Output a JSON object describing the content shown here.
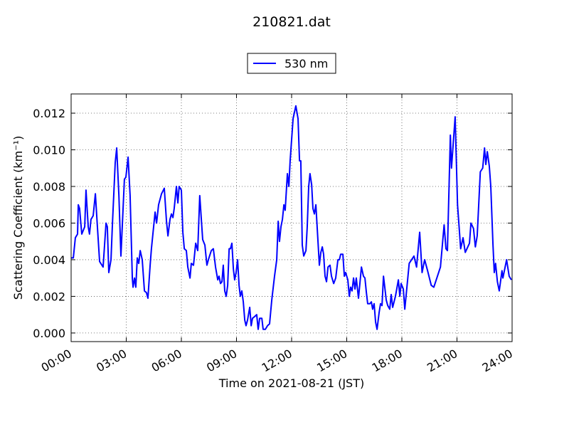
{
  "chart_data": {
    "type": "line",
    "title": "210821.dat",
    "xlabel": "Time on 2021-08-21 (JST)",
    "ylabel": "Scattering Coefficient (km⁻¹)",
    "legend": "upper center",
    "grid": true,
    "xlim": [
      0,
      24
    ],
    "xticks": [
      {
        "value": 0,
        "label": "00:00"
      },
      {
        "value": 3,
        "label": "03:00"
      },
      {
        "value": 6,
        "label": "06:00"
      },
      {
        "value": 9,
        "label": "09:00"
      },
      {
        "value": 12,
        "label": "12:00"
      },
      {
        "value": 15,
        "label": "15:00"
      },
      {
        "value": 18,
        "label": "18:00"
      },
      {
        "value": 21,
        "label": "21:00"
      },
      {
        "value": 24,
        "label": "24:00"
      }
    ],
    "ylim": [
      -0.00047,
      0.01305
    ],
    "yticks": [
      {
        "value": 0,
        "label": "0.000"
      },
      {
        "value": 0.002,
        "label": "0.002"
      },
      {
        "value": 0.004,
        "label": "0.004"
      },
      {
        "value": 0.006,
        "label": "0.006"
      },
      {
        "value": 0.008,
        "label": "0.008"
      },
      {
        "value": 0.01,
        "label": "0.010"
      },
      {
        "value": 0.012,
        "label": "0.012"
      }
    ],
    "x": [
      0,
      0.12,
      0.23,
      0.35,
      0.39,
      0.46,
      0.58,
      0.74,
      0.81,
      0.93,
      1.0,
      1.08,
      1.2,
      1.32,
      1.43,
      1.55,
      1.74,
      1.9,
      1.97,
      2.05,
      2.17,
      2.25,
      2.4,
      2.48,
      2.6,
      2.71,
      2.9,
      2.98,
      3.1,
      3.21,
      3.33,
      3.37,
      3.45,
      3.52,
      3.6,
      3.68,
      3.76,
      3.87,
      3.99,
      4.1,
      4.18,
      4.3,
      4.37,
      4.49,
      4.57,
      4.65,
      4.76,
      4.92,
      5.07,
      5.19,
      5.27,
      5.38,
      5.46,
      5.54,
      5.61,
      5.73,
      5.81,
      5.88,
      6.0,
      6.08,
      6.16,
      6.27,
      6.35,
      6.47,
      6.54,
      6.66,
      6.78,
      6.89,
      7.0,
      7.08,
      7.16,
      7.28,
      7.39,
      7.47,
      7.63,
      7.74,
      7.86,
      7.98,
      8.05,
      8.13,
      8.21,
      8.28,
      8.36,
      8.44,
      8.52,
      8.6,
      8.67,
      8.75,
      8.83,
      8.9,
      8.98,
      9.06,
      9.14,
      9.21,
      9.29,
      9.37,
      9.45,
      9.52,
      9.6,
      9.72,
      9.8,
      9.87,
      9.99,
      10.1,
      10.18,
      10.26,
      10.38,
      10.45,
      10.57,
      10.69,
      10.8,
      10.92,
      11.07,
      11.19,
      11.27,
      11.34,
      11.42,
      11.5,
      11.58,
      11.65,
      11.77,
      11.85,
      11.92,
      12.08,
      12.23,
      12.35,
      12.43,
      12.5,
      12.58,
      12.66,
      12.78,
      12.85,
      12.93,
      13.0,
      13.09,
      13.16,
      13.24,
      13.32,
      13.51,
      13.59,
      13.67,
      13.74,
      13.82,
      13.9,
      13.98,
      14.09,
      14.17,
      14.29,
      14.4,
      14.52,
      14.6,
      14.67,
      14.79,
      14.87,
      14.94,
      15.06,
      15.14,
      15.21,
      15.29,
      15.37,
      15.45,
      15.52,
      15.64,
      15.8,
      15.91,
      15.99,
      16.07,
      16.14,
      16.26,
      16.34,
      16.41,
      16.49,
      16.57,
      16.65,
      16.76,
      16.84,
      16.92,
      17.0,
      17.07,
      17.15,
      17.23,
      17.34,
      17.42,
      17.5,
      17.65,
      17.81,
      17.89,
      17.96,
      18.08,
      18.16,
      18.4,
      18.66,
      18.8,
      18.97,
      19.1,
      19.24,
      19.4,
      19.6,
      19.74,
      20.1,
      20.3,
      20.4,
      20.48,
      20.64,
      20.7,
      20.9,
      21.03,
      21.2,
      21.33,
      21.45,
      21.68,
      21.76,
      21.9,
      22.0,
      22.1,
      22.27,
      22.4,
      22.5,
      22.57,
      22.65,
      22.76,
      22.84,
      22.96,
      23.03,
      23.1,
      23.2,
      23.3,
      23.45,
      23.5,
      23.7,
      23.84,
      23.96
    ],
    "series": [
      {
        "name": "530 nm",
        "color": "#0000ff",
        "values": [
          0.0041,
          0.0041,
          0.0052,
          0.0054,
          0.007,
          0.0068,
          0.0054,
          0.0058,
          0.0078,
          0.0058,
          0.0054,
          0.0062,
          0.0064,
          0.0076,
          0.0058,
          0.0039,
          0.0036,
          0.006,
          0.0058,
          0.0033,
          0.004,
          0.006,
          0.0093,
          0.0101,
          0.0075,
          0.0042,
          0.0084,
          0.0085,
          0.0096,
          0.0075,
          0.003,
          0.0025,
          0.003,
          0.0025,
          0.0041,
          0.0038,
          0.0045,
          0.004,
          0.0023,
          0.0022,
          0.0019,
          0.0037,
          0.0046,
          0.0058,
          0.0066,
          0.006,
          0.007,
          0.0076,
          0.0079,
          0.0061,
          0.0053,
          0.0062,
          0.0065,
          0.0063,
          0.0068,
          0.008,
          0.0071,
          0.008,
          0.0078,
          0.0055,
          0.0046,
          0.0045,
          0.0036,
          0.003,
          0.0038,
          0.0037,
          0.0049,
          0.0045,
          0.0075,
          0.0063,
          0.0051,
          0.0048,
          0.0037,
          0.004,
          0.0045,
          0.0046,
          0.0036,
          0.0029,
          0.0031,
          0.0027,
          0.0028,
          0.0037,
          0.0023,
          0.002,
          0.0026,
          0.0046,
          0.0046,
          0.0049,
          0.0035,
          0.0029,
          0.0033,
          0.004,
          0.0026,
          0.002,
          0.0023,
          0.0017,
          0.0007,
          0.0004,
          0.0007,
          0.0014,
          0.0004,
          0.0008,
          0.0009,
          0.001,
          0.0002,
          0.0008,
          0.0008,
          0.0002,
          0.0002,
          0.0004,
          0.0005,
          0.0018,
          0.0031,
          0.004,
          0.0061,
          0.005,
          0.0058,
          0.0062,
          0.007,
          0.0067,
          0.0087,
          0.008,
          0.0094,
          0.0117,
          0.0124,
          0.0117,
          0.0094,
          0.0094,
          0.0048,
          0.0042,
          0.0045,
          0.0058,
          0.008,
          0.0087,
          0.0081,
          0.0068,
          0.0065,
          0.007,
          0.0037,
          0.0044,
          0.0047,
          0.0043,
          0.0031,
          0.0028,
          0.0036,
          0.0037,
          0.0031,
          0.0027,
          0.003,
          0.004,
          0.004,
          0.0043,
          0.0043,
          0.0031,
          0.0033,
          0.0029,
          0.002,
          0.0025,
          0.0023,
          0.003,
          0.0024,
          0.003,
          0.0019,
          0.0036,
          0.0031,
          0.003,
          0.0022,
          0.0016,
          0.0016,
          0.0017,
          0.0013,
          0.0016,
          0.0006,
          0.0002,
          0.0011,
          0.0016,
          0.0015,
          0.0031,
          0.0025,
          0.0018,
          0.0015,
          0.0013,
          0.0021,
          0.0014,
          0.002,
          0.0029,
          0.002,
          0.0027,
          0.0024,
          0.0013,
          0.0038,
          0.0042,
          0.0036,
          0.0055,
          0.0033,
          0.004,
          0.0034,
          0.0026,
          0.0025,
          0.0036,
          0.0059,
          0.0046,
          0.0045,
          0.0108,
          0.009,
          0.0118,
          0.007,
          0.0046,
          0.0052,
          0.0044,
          0.0049,
          0.006,
          0.0057,
          0.0047,
          0.0053,
          0.0088,
          0.009,
          0.0101,
          0.0092,
          0.0099,
          0.0091,
          0.008,
          0.0048,
          0.0033,
          0.0038,
          0.0028,
          0.0023,
          0.0034,
          0.003,
          0.004,
          0.0031,
          0.0029
        ]
      }
    ]
  }
}
